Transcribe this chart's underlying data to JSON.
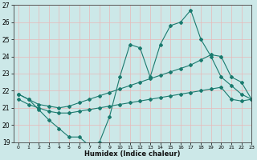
{
  "xlabel": "Humidex (Indice chaleur)",
  "background_color": "#cce8e8",
  "grid_color": "#e8b8b8",
  "line_color": "#1a7a6e",
  "x_values": [
    0,
    1,
    2,
    3,
    4,
    5,
    6,
    7,
    8,
    9,
    10,
    11,
    12,
    13,
    14,
    15,
    16,
    17,
    18,
    19,
    20,
    21,
    22,
    23
  ],
  "line_main": [
    21.8,
    21.5,
    20.9,
    20.3,
    19.8,
    19.3,
    19.3,
    18.8,
    19.0,
    20.5,
    22.8,
    24.7,
    24.5,
    22.8,
    24.7,
    25.8,
    26.0,
    26.7,
    25.0,
    24.0,
    22.8,
    22.3,
    21.8,
    21.5
  ],
  "line2": [
    21.8,
    21.5,
    21.2,
    21.1,
    21.0,
    21.1,
    21.3,
    21.5,
    21.7,
    21.9,
    22.1,
    22.3,
    22.5,
    22.7,
    22.9,
    23.1,
    23.3,
    23.5,
    23.8,
    24.1,
    24.0,
    22.8,
    22.5,
    21.5
  ],
  "line3": [
    21.5,
    21.2,
    21.0,
    20.8,
    20.7,
    20.7,
    20.8,
    20.9,
    21.0,
    21.1,
    21.2,
    21.3,
    21.4,
    21.5,
    21.6,
    21.7,
    21.8,
    21.9,
    22.0,
    22.1,
    22.2,
    21.5,
    21.4,
    21.5
  ],
  "ylim": [
    19,
    27
  ],
  "xlim": [
    -0.5,
    23
  ],
  "yticks": [
    19,
    20,
    21,
    22,
    23,
    24,
    25,
    26,
    27
  ],
  "xticks": [
    0,
    1,
    2,
    3,
    4,
    5,
    6,
    7,
    8,
    9,
    10,
    11,
    12,
    13,
    14,
    15,
    16,
    17,
    18,
    19,
    20,
    21,
    22,
    23
  ]
}
